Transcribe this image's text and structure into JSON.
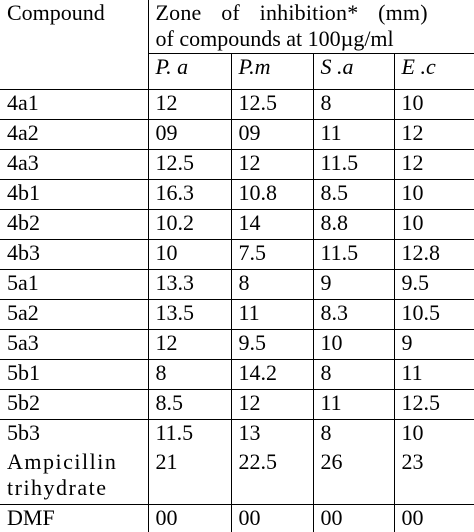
{
  "table": {
    "header": {
      "compound_label": "Compound",
      "zone_line1": "Zone of inhibition* (mm)",
      "zone_line2": "of compounds at 100µg/ml"
    },
    "organisms": [
      "P. a",
      "P.m",
      "S .a",
      "E .c"
    ],
    "rows": [
      {
        "compound": "4a1",
        "values": [
          "12",
          "12.5",
          "8",
          "10"
        ]
      },
      {
        "compound": "4a2",
        "values": [
          "09",
          "09",
          "11",
          "12"
        ]
      },
      {
        "compound": "4a3",
        "values": [
          "12.5",
          "12",
          "11.5",
          "12"
        ]
      },
      {
        "compound": "4b1",
        "values": [
          "16.3",
          "10.8",
          "8.5",
          "10"
        ]
      },
      {
        "compound": "4b2",
        "values": [
          "10.2",
          "14",
          "8.8",
          "10"
        ]
      },
      {
        "compound": "4b3",
        "values": [
          "10",
          "7.5",
          "11.5",
          "12.8"
        ]
      },
      {
        "compound": "5a1",
        "values": [
          "13.3",
          "8",
          "9",
          "9.5"
        ]
      },
      {
        "compound": "5a2",
        "values": [
          "13.5",
          "11",
          "8.3",
          "10.5"
        ]
      },
      {
        "compound": "5a3",
        "values": [
          "12",
          "9.5",
          "10",
          "9"
        ]
      },
      {
        "compound": "5b1",
        "values": [
          "8",
          "14.2",
          "8",
          "11"
        ]
      },
      {
        "compound": "5b2",
        "values": [
          "8.5",
          "12",
          "11",
          "12.5"
        ]
      },
      {
        "compound": "5b3",
        "values": [
          "11.5",
          "13",
          "8",
          "10"
        ]
      }
    ],
    "standard": {
      "compound_line1": "Ampicillin",
      "compound_line2": "trihydrate",
      "values": [
        "21",
        "22.5",
        "26",
        "23"
      ]
    },
    "control": {
      "compound": "DMF",
      "values": [
        "00",
        "00",
        "00",
        "00"
      ]
    }
  }
}
